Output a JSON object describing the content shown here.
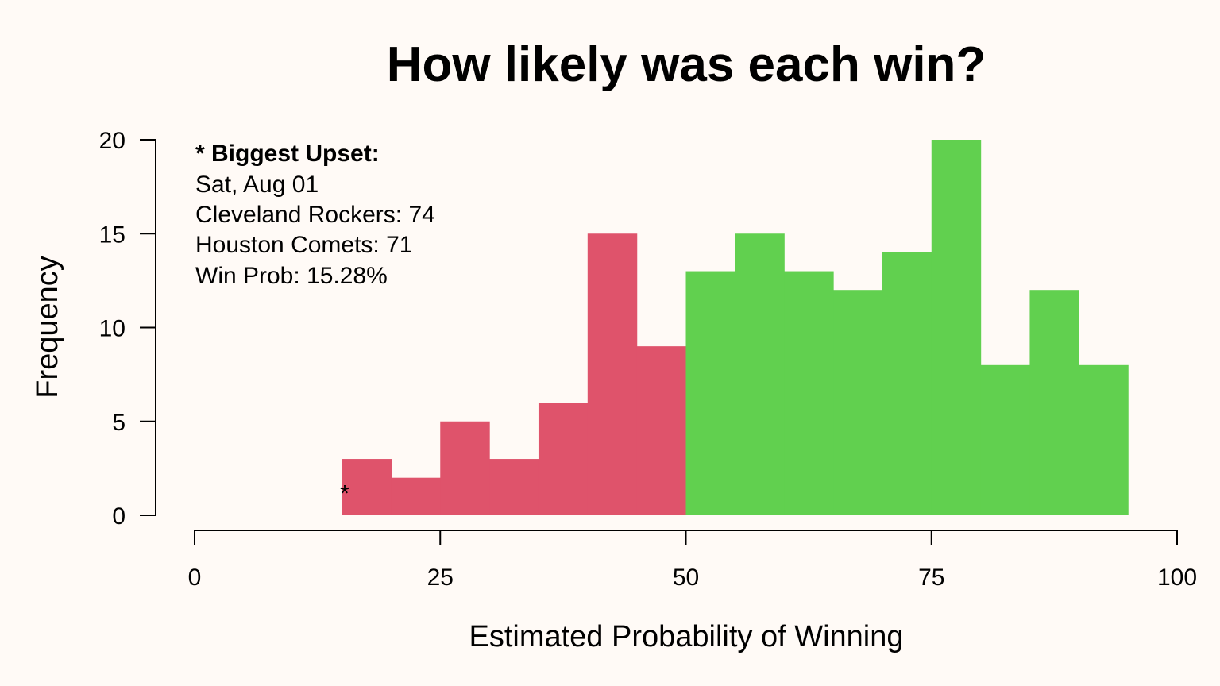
{
  "chart_data": {
    "type": "bar",
    "title": "How likely was each win?",
    "xlabel": "Estimated Probability of Winning",
    "ylabel": "Frequency",
    "xlim": [
      0,
      100
    ],
    "ylim": [
      0,
      20
    ],
    "x_ticks": [
      "0",
      "25",
      "50",
      "75",
      "100"
    ],
    "y_ticks": [
      "0",
      "5",
      "10",
      "15",
      "20"
    ],
    "grid": false,
    "bins": [
      {
        "start": 15,
        "end": 20,
        "count": 3
      },
      {
        "start": 20,
        "end": 25,
        "count": 2
      },
      {
        "start": 25,
        "end": 30,
        "count": 5
      },
      {
        "start": 30,
        "end": 35,
        "count": 3
      },
      {
        "start": 35,
        "end": 40,
        "count": 6
      },
      {
        "start": 40,
        "end": 45,
        "count": 15
      },
      {
        "start": 45,
        "end": 50,
        "count": 9
      },
      {
        "start": 50,
        "end": 55,
        "count": 13
      },
      {
        "start": 55,
        "end": 60,
        "count": 15
      },
      {
        "start": 60,
        "end": 65,
        "count": 13
      },
      {
        "start": 65,
        "end": 70,
        "count": 12
      },
      {
        "start": 70,
        "end": 75,
        "count": 14
      },
      {
        "start": 75,
        "end": 80,
        "count": 20
      },
      {
        "start": 80,
        "end": 85,
        "count": 8
      },
      {
        "start": 85,
        "end": 90,
        "count": 12
      },
      {
        "start": 90,
        "end": 95,
        "count": 8
      }
    ],
    "colors": {
      "below_50": "#df536b",
      "above_50": "#61d04f"
    },
    "marker": {
      "symbol": "*",
      "x": 15.28,
      "y": 1.5
    },
    "annotation": {
      "heading": "* Biggest Upset:",
      "lines": [
        "Sat, Aug 01",
        "Cleveland Rockers: 74",
        "Houston Comets: 71",
        "Win Prob: 15.28%"
      ]
    }
  }
}
